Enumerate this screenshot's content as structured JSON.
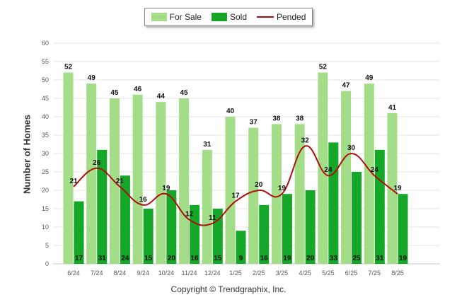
{
  "legend": {
    "for_sale_label": "For Sale",
    "sold_label": "Sold",
    "pended_label": "Pended"
  },
  "copyright": "Copyright © Trendgraphix, Inc.",
  "colors": {
    "for_sale": "#a3dd87",
    "sold": "#14a728",
    "pended": "#b00f0f",
    "grid": "#e6e6e6"
  },
  "chart_data": {
    "type": "bar",
    "ylabel": "Number of Homes",
    "ylim": [
      0,
      60
    ],
    "yticks": [
      0,
      5,
      10,
      15,
      20,
      25,
      30,
      35,
      40,
      45,
      50,
      55,
      60
    ],
    "grid": true,
    "legend_position": "top-center",
    "categories": [
      "6/24",
      "7/24",
      "8/24",
      "9/24",
      "10/24",
      "11/24",
      "12/24",
      "1/25",
      "2/25",
      "3/25",
      "4/25",
      "5/25",
      "6/25",
      "7/25",
      "8/25"
    ],
    "series": [
      {
        "name": "For Sale",
        "type": "bar",
        "values": [
          52,
          49,
          45,
          46,
          44,
          45,
          31,
          40,
          37,
          38,
          38,
          52,
          47,
          49,
          41
        ]
      },
      {
        "name": "Sold",
        "type": "bar",
        "values": [
          17,
          31,
          24,
          15,
          20,
          16,
          15,
          9,
          16,
          19,
          20,
          33,
          25,
          31,
          19
        ]
      },
      {
        "name": "Pended",
        "type": "line",
        "values": [
          21,
          26,
          21,
          16,
          19,
          12,
          11,
          17,
          20,
          19,
          32,
          24,
          30,
          24,
          19
        ]
      }
    ]
  }
}
